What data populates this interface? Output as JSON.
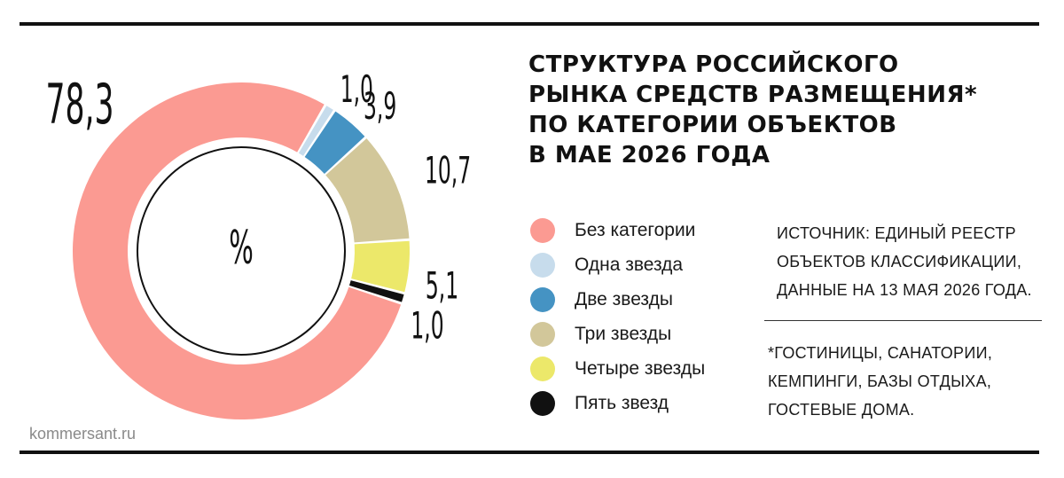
{
  "title_lines": [
    "СТРУКТУРА РОССИЙСКОГО",
    "РЫНКА СРЕДСТВ РАЗМЕЩЕНИЯ*",
    "ПО КАТЕГОРИИ ОБЪЕКТОВ",
    "В МАЕ 2026 ГОДА"
  ],
  "center_label": "%",
  "source_lines": [
    "ИСТОЧНИК: ЕДИНЫЙ РЕЕСТР",
    "ОБЪЕКТОВ КЛАССИФИКАЦИИ,",
    "ДАННЫЕ НА 13 МАЯ 2026 ГОДА."
  ],
  "footnote_lines": [
    "*ГОСТИНИЦЫ, САНАТОРИИ,",
    "КЕМПИНГИ, БАЗЫ ОТДЫХА,",
    "ГОСТЕВЫЕ ДОМА."
  ],
  "brand": "kommersant.ru",
  "chart_data": {
    "type": "pie",
    "donut": true,
    "unit": "%",
    "legend_position": "right",
    "categories": [
      "Без категории",
      "Одна звезда",
      "Две звезды",
      "Три звезды",
      "Четыре звезды",
      "Пять звезд"
    ],
    "values": [
      78.3,
      1.0,
      3.9,
      10.7,
      5.1,
      1.0
    ],
    "value_labels": [
      "78,3",
      "1,0",
      "3,9",
      "10,7",
      "5,1",
      "1,0"
    ],
    "colors": [
      "#fb9a92",
      "#c7dcec",
      "#4593c3",
      "#d2c79a",
      "#ece86a",
      "#111111"
    ]
  }
}
